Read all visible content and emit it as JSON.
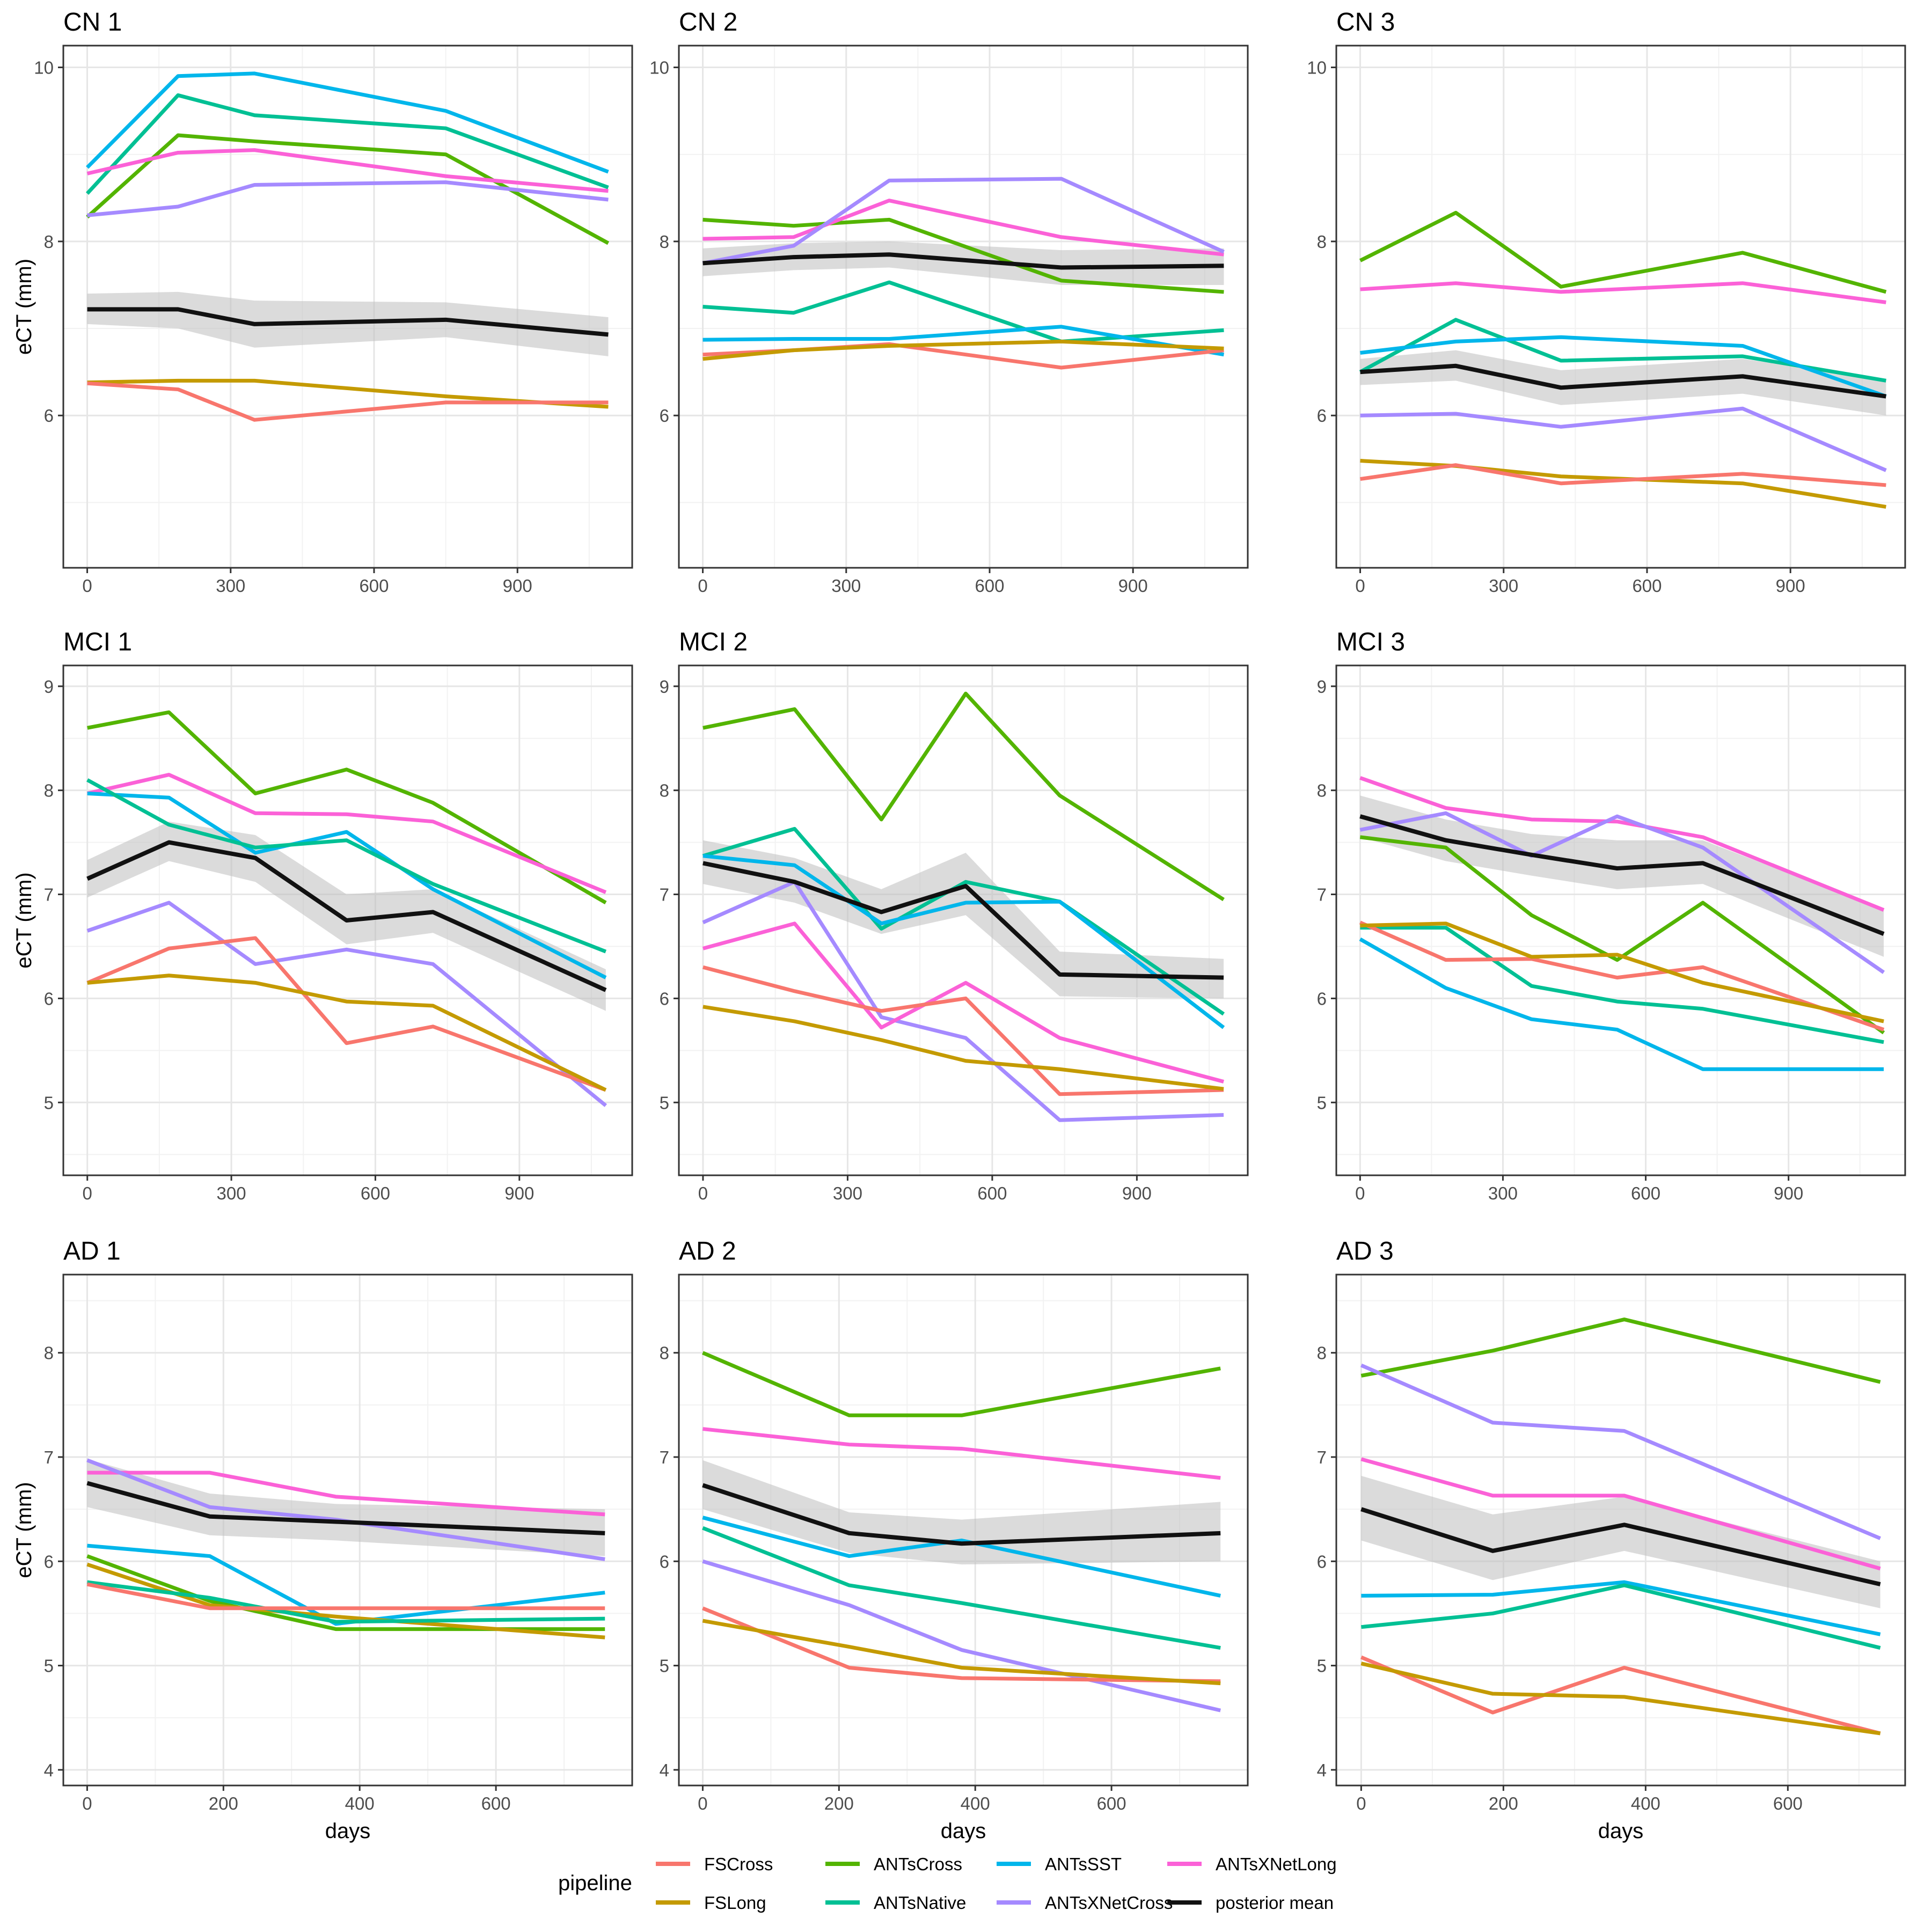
{
  "colors": {
    "FSCross": "#F8766D",
    "FSLong": "#C49A00",
    "ANTsCross": "#53B400",
    "ANTsNative": "#00C094",
    "ANTsSST": "#00B6EB",
    "ANTsXNetCross": "#A58AFF",
    "ANTsXNetLong": "#FB61D7",
    "posterior mean": "#111111"
  },
  "legend": {
    "title": "pipeline",
    "entries": [
      "FSCross",
      "FSLong",
      "ANTsCross",
      "ANTsNative",
      "ANTsSST",
      "ANTsXNetCross",
      "ANTsXNetLong",
      "posterior mean"
    ]
  },
  "chart_data": [
    {
      "type": "line",
      "title": "CN 1",
      "ylabel": "eCT (mm)",
      "xlabel": "",
      "xlim": [
        -50,
        1140
      ],
      "ylim": [
        4.25,
        10.25
      ],
      "xticks": [
        0,
        300,
        600,
        900
      ],
      "yticks": [
        6,
        8,
        10
      ],
      "x": [
        0,
        190,
        350,
        750,
        1090
      ],
      "series": [
        {
          "name": "ANTsSST",
          "values": [
            8.85,
            9.9,
            9.93,
            9.5,
            8.8
          ]
        },
        {
          "name": "ANTsNative",
          "values": [
            8.55,
            9.68,
            9.45,
            9.3,
            8.62
          ]
        },
        {
          "name": "ANTsCross",
          "values": [
            8.28,
            9.22,
            9.15,
            9.0,
            7.98
          ]
        },
        {
          "name": "ANTsXNetLong",
          "values": [
            8.78,
            9.02,
            9.05,
            8.75,
            8.58
          ]
        },
        {
          "name": "ANTsXNetCross",
          "values": [
            8.3,
            8.4,
            8.65,
            8.68,
            8.48
          ]
        },
        {
          "name": "FSLong",
          "values": [
            6.38,
            6.4,
            6.4,
            6.22,
            6.1
          ]
        },
        {
          "name": "FSCross",
          "values": [
            6.37,
            6.3,
            5.95,
            6.15,
            6.15
          ]
        },
        {
          "name": "posterior mean",
          "values": [
            7.22,
            7.22,
            7.05,
            7.1,
            6.93
          ],
          "ci_low": [
            7.05,
            7.0,
            6.78,
            6.9,
            6.68
          ],
          "ci_high": [
            7.4,
            7.42,
            7.32,
            7.3,
            7.13
          ]
        }
      ]
    },
    {
      "type": "line",
      "title": "CN 2",
      "ylabel": "",
      "xlabel": "",
      "xlim": [
        -50,
        1140
      ],
      "ylim": [
        4.25,
        10.25
      ],
      "xticks": [
        0,
        300,
        600,
        900
      ],
      "yticks": [
        6,
        8,
        10
      ],
      "x": [
        0,
        190,
        390,
        750,
        1090
      ],
      "series": [
        {
          "name": "ANTsCross",
          "values": [
            8.25,
            8.18,
            8.25,
            7.55,
            7.42
          ]
        },
        {
          "name": "ANTsXNetLong",
          "values": [
            8.03,
            8.05,
            8.47,
            8.05,
            7.85
          ]
        },
        {
          "name": "ANTsXNetCross",
          "values": [
            7.75,
            7.95,
            8.7,
            8.72,
            7.88
          ]
        },
        {
          "name": "ANTsNative",
          "values": [
            7.25,
            7.18,
            7.53,
            6.85,
            6.98
          ]
        },
        {
          "name": "ANTsSST",
          "values": [
            6.87,
            6.88,
            6.88,
            7.02,
            6.7
          ]
        },
        {
          "name": "FSCross",
          "values": [
            6.7,
            6.75,
            6.82,
            6.55,
            6.75
          ]
        },
        {
          "name": "FSLong",
          "values": [
            6.65,
            6.75,
            6.8,
            6.85,
            6.77
          ]
        },
        {
          "name": "posterior mean",
          "values": [
            7.75,
            7.82,
            7.85,
            7.7,
            7.72
          ],
          "ci_low": [
            7.6,
            7.67,
            7.7,
            7.5,
            7.5
          ],
          "ci_high": [
            7.92,
            7.98,
            8.0,
            7.9,
            7.92
          ]
        }
      ]
    },
    {
      "type": "line",
      "title": "CN 3",
      "ylabel": "",
      "xlabel": "",
      "xlim": [
        -50,
        1140
      ],
      "ylim": [
        4.25,
        10.25
      ],
      "xticks": [
        0,
        300,
        600,
        900
      ],
      "yticks": [
        6,
        8,
        10
      ],
      "x": [
        0,
        200,
        420,
        800,
        1100
      ],
      "series": [
        {
          "name": "ANTsCross",
          "values": [
            7.78,
            8.33,
            7.48,
            7.87,
            7.42
          ]
        },
        {
          "name": "ANTsXNetLong",
          "values": [
            7.45,
            7.52,
            7.42,
            7.52,
            7.3
          ]
        },
        {
          "name": "ANTsNative",
          "values": [
            6.5,
            7.1,
            6.63,
            6.68,
            6.4
          ]
        },
        {
          "name": "ANTsSST",
          "values": [
            6.72,
            6.85,
            6.9,
            6.8,
            6.22
          ]
        },
        {
          "name": "ANTsXNetCross",
          "values": [
            6.0,
            6.02,
            5.87,
            6.08,
            5.37
          ]
        },
        {
          "name": "FSLong",
          "values": [
            5.48,
            5.42,
            5.3,
            5.22,
            4.95
          ]
        },
        {
          "name": "FSCross",
          "values": [
            5.27,
            5.43,
            5.22,
            5.33,
            5.2
          ]
        },
        {
          "name": "posterior mean",
          "values": [
            6.5,
            6.57,
            6.32,
            6.45,
            6.22
          ],
          "ci_low": [
            6.35,
            6.4,
            6.12,
            6.25,
            6.0
          ],
          "ci_high": [
            6.65,
            6.75,
            6.52,
            6.65,
            6.42
          ]
        }
      ]
    },
    {
      "type": "line",
      "title": "MCI 1",
      "ylabel": "eCT (mm)",
      "xlabel": "",
      "xlim": [
        -50,
        1135
      ],
      "ylim": [
        4.3,
        9.2
      ],
      "xticks": [
        0,
        300,
        600,
        900
      ],
      "yticks": [
        5,
        6,
        7,
        8,
        9
      ],
      "x": [
        0,
        170,
        350,
        540,
        720,
        1080
      ],
      "series": [
        {
          "name": "ANTsCross",
          "values": [
            8.6,
            8.75,
            7.97,
            8.2,
            7.88,
            6.92
          ]
        },
        {
          "name": "ANTsXNetLong",
          "values": [
            7.97,
            8.15,
            7.78,
            7.77,
            7.7,
            7.02
          ]
        },
        {
          "name": "ANTsSST",
          "values": [
            7.97,
            7.93,
            7.4,
            7.6,
            7.05,
            6.2
          ]
        },
        {
          "name": "ANTsNative",
          "values": [
            8.1,
            7.67,
            7.45,
            7.52,
            7.1,
            6.45
          ]
        },
        {
          "name": "ANTsXNetCross",
          "values": [
            6.65,
            6.92,
            6.33,
            6.47,
            6.33,
            4.97
          ]
        },
        {
          "name": "FSCross",
          "values": [
            6.15,
            6.48,
            6.58,
            5.57,
            5.73,
            5.12
          ]
        },
        {
          "name": "FSLong",
          "values": [
            6.15,
            6.22,
            6.15,
            5.97,
            5.93,
            5.12
          ]
        },
        {
          "name": "posterior mean",
          "values": [
            7.15,
            7.5,
            7.35,
            6.75,
            6.83,
            6.08
          ],
          "ci_low": [
            6.97,
            7.32,
            7.12,
            6.52,
            6.63,
            5.88
          ],
          "ci_high": [
            7.33,
            7.7,
            7.57,
            7.0,
            7.05,
            6.28
          ]
        }
      ]
    },
    {
      "type": "line",
      "title": "MCI 2",
      "ylabel": "",
      "xlabel": "",
      "xlim": [
        -50,
        1130
      ],
      "ylim": [
        4.3,
        9.2
      ],
      "xticks": [
        0,
        300,
        600,
        900
      ],
      "yticks": [
        5,
        6,
        7,
        8,
        9
      ],
      "x": [
        0,
        190,
        370,
        545,
        740,
        1080
      ],
      "series": [
        {
          "name": "ANTsCross",
          "values": [
            8.6,
            8.78,
            7.72,
            8.93,
            7.95,
            6.95
          ]
        },
        {
          "name": "ANTsNative",
          "values": [
            7.37,
            7.63,
            6.67,
            7.12,
            6.93,
            5.85
          ]
        },
        {
          "name": "ANTsSST",
          "values": [
            7.37,
            7.28,
            6.72,
            6.92,
            6.93,
            5.72
          ]
        },
        {
          "name": "ANTsXNetCross",
          "values": [
            6.73,
            7.12,
            5.82,
            5.62,
            4.83,
            4.88
          ]
        },
        {
          "name": "ANTsXNetLong",
          "values": [
            6.48,
            6.72,
            5.72,
            6.15,
            5.62,
            5.2
          ]
        },
        {
          "name": "FSCross",
          "values": [
            6.3,
            6.07,
            5.88,
            6.0,
            5.08,
            5.12
          ]
        },
        {
          "name": "FSLong",
          "values": [
            5.92,
            5.78,
            5.6,
            5.4,
            5.32,
            5.13
          ]
        },
        {
          "name": "posterior mean",
          "values": [
            7.3,
            7.12,
            6.83,
            7.08,
            6.23,
            6.2
          ],
          "ci_low": [
            7.1,
            6.92,
            6.62,
            6.8,
            6.02,
            6.0
          ],
          "ci_high": [
            7.52,
            7.35,
            7.05,
            7.4,
            6.45,
            6.38
          ]
        }
      ]
    },
    {
      "type": "line",
      "title": "MCI 3",
      "ylabel": "",
      "xlabel": "",
      "xlim": [
        -50,
        1145
      ],
      "ylim": [
        4.3,
        9.2
      ],
      "xticks": [
        0,
        300,
        600,
        900
      ],
      "yticks": [
        5,
        6,
        7,
        8,
        9
      ],
      "x": [
        0,
        180,
        360,
        540,
        720,
        1100
      ],
      "series": [
        {
          "name": "ANTsXNetLong",
          "values": [
            8.12,
            7.83,
            7.72,
            7.7,
            7.55,
            6.85
          ]
        },
        {
          "name": "ANTsXNetCross",
          "values": [
            7.62,
            7.78,
            7.37,
            7.75,
            7.45,
            6.25
          ]
        },
        {
          "name": "ANTsCross",
          "values": [
            7.55,
            7.45,
            6.8,
            6.37,
            6.92,
            5.67
          ]
        },
        {
          "name": "ANTsNative",
          "values": [
            6.68,
            6.68,
            6.12,
            5.97,
            5.9,
            5.58
          ]
        },
        {
          "name": "ANTsSST",
          "values": [
            6.57,
            6.1,
            5.8,
            5.7,
            5.32,
            5.32
          ]
        },
        {
          "name": "FSCross",
          "values": [
            6.73,
            6.37,
            6.38,
            6.2,
            6.3,
            5.7
          ]
        },
        {
          "name": "FSLong",
          "values": [
            6.7,
            6.72,
            6.4,
            6.42,
            6.15,
            5.78
          ]
        },
        {
          "name": "posterior mean",
          "values": [
            7.75,
            7.52,
            7.38,
            7.25,
            7.3,
            6.62
          ],
          "ci_low": [
            7.55,
            7.32,
            7.18,
            7.05,
            7.1,
            6.4
          ],
          "ci_high": [
            7.95,
            7.72,
            7.58,
            7.52,
            7.52,
            6.85
          ]
        }
      ]
    },
    {
      "type": "line",
      "title": "AD 1",
      "ylabel": "eCT (mm)",
      "xlabel": "days",
      "xlim": [
        -35,
        800
      ],
      "ylim": [
        3.85,
        8.75
      ],
      "xticks": [
        0,
        200,
        400,
        600
      ],
      "yticks": [
        4,
        5,
        6,
        7,
        8
      ],
      "x": [
        0,
        180,
        365,
        760
      ],
      "series": [
        {
          "name": "ANTsXNetLong",
          "values": [
            6.85,
            6.85,
            6.62,
            6.45
          ]
        },
        {
          "name": "ANTsXNetCross",
          "values": [
            6.97,
            6.52,
            6.4,
            6.02
          ]
        },
        {
          "name": "ANTsSST",
          "values": [
            6.15,
            6.05,
            5.4,
            5.7
          ]
        },
        {
          "name": "ANTsCross",
          "values": [
            6.05,
            5.62,
            5.35,
            5.35
          ]
        },
        {
          "name": "FSLong",
          "values": [
            5.97,
            5.58,
            5.47,
            5.27
          ]
        },
        {
          "name": "ANTsNative",
          "values": [
            5.8,
            5.65,
            5.42,
            5.45
          ]
        },
        {
          "name": "FSCross",
          "values": [
            5.78,
            5.55,
            5.55,
            5.55
          ]
        },
        {
          "name": "posterior mean",
          "values": [
            6.75,
            6.43,
            6.38,
            6.27
          ],
          "ci_low": [
            6.52,
            6.25,
            6.2,
            6.05
          ],
          "ci_high": [
            6.98,
            6.65,
            6.55,
            6.5
          ]
        }
      ]
    },
    {
      "type": "line",
      "title": "AD 2",
      "ylabel": "",
      "xlabel": "days",
      "xlim": [
        -35,
        800
      ],
      "ylim": [
        3.85,
        8.75
      ],
      "xticks": [
        0,
        200,
        400,
        600
      ],
      "yticks": [
        4,
        5,
        6,
        7,
        8
      ],
      "x": [
        0,
        215,
        380,
        760
      ],
      "series": [
        {
          "name": "ANTsCross",
          "values": [
            8.0,
            7.4,
            7.4,
            7.85
          ]
        },
        {
          "name": "ANTsXNetLong",
          "values": [
            7.27,
            7.12,
            7.08,
            6.8
          ]
        },
        {
          "name": "ANTsSST",
          "values": [
            6.42,
            6.05,
            6.2,
            5.67
          ]
        },
        {
          "name": "ANTsNative",
          "values": [
            6.32,
            5.77,
            5.6,
            5.17
          ]
        },
        {
          "name": "ANTsXNetCross",
          "values": [
            6.0,
            5.58,
            5.15,
            4.57
          ]
        },
        {
          "name": "FSCross",
          "values": [
            5.55,
            4.98,
            4.88,
            4.85
          ]
        },
        {
          "name": "FSLong",
          "values": [
            5.43,
            5.18,
            4.98,
            4.83
          ]
        },
        {
          "name": "posterior mean",
          "values": [
            6.73,
            6.27,
            6.17,
            6.27
          ],
          "ci_low": [
            6.5,
            6.08,
            5.97,
            6.0
          ],
          "ci_high": [
            6.97,
            6.47,
            6.4,
            6.57
          ]
        }
      ]
    },
    {
      "type": "line",
      "title": "AD 3",
      "ylabel": "",
      "xlabel": "days",
      "xlim": [
        -35,
        765
      ],
      "ylim": [
        3.85,
        8.75
      ],
      "xticks": [
        0,
        200,
        400,
        600
      ],
      "yticks": [
        4,
        5,
        6,
        7,
        8
      ],
      "x": [
        0,
        185,
        370,
        730
      ],
      "series": [
        {
          "name": "ANTsCross",
          "values": [
            7.78,
            8.02,
            8.32,
            7.72
          ]
        },
        {
          "name": "ANTsXNetCross",
          "values": [
            7.88,
            7.33,
            7.25,
            6.22
          ]
        },
        {
          "name": "ANTsXNetLong",
          "values": [
            6.98,
            6.63,
            6.63,
            5.93
          ]
        },
        {
          "name": "ANTsSST",
          "values": [
            5.67,
            5.68,
            5.8,
            5.3
          ]
        },
        {
          "name": "ANTsNative",
          "values": [
            5.37,
            5.5,
            5.77,
            5.17
          ]
        },
        {
          "name": "FSCross",
          "values": [
            5.08,
            4.55,
            4.98,
            4.35
          ]
        },
        {
          "name": "FSLong",
          "values": [
            5.02,
            4.73,
            4.7,
            4.35
          ]
        },
        {
          "name": "posterior mean",
          "values": [
            6.5,
            6.1,
            6.35,
            5.78
          ],
          "ci_low": [
            6.2,
            5.82,
            6.1,
            5.55
          ],
          "ci_high": [
            6.82,
            6.45,
            6.62,
            6.0
          ]
        }
      ]
    }
  ]
}
